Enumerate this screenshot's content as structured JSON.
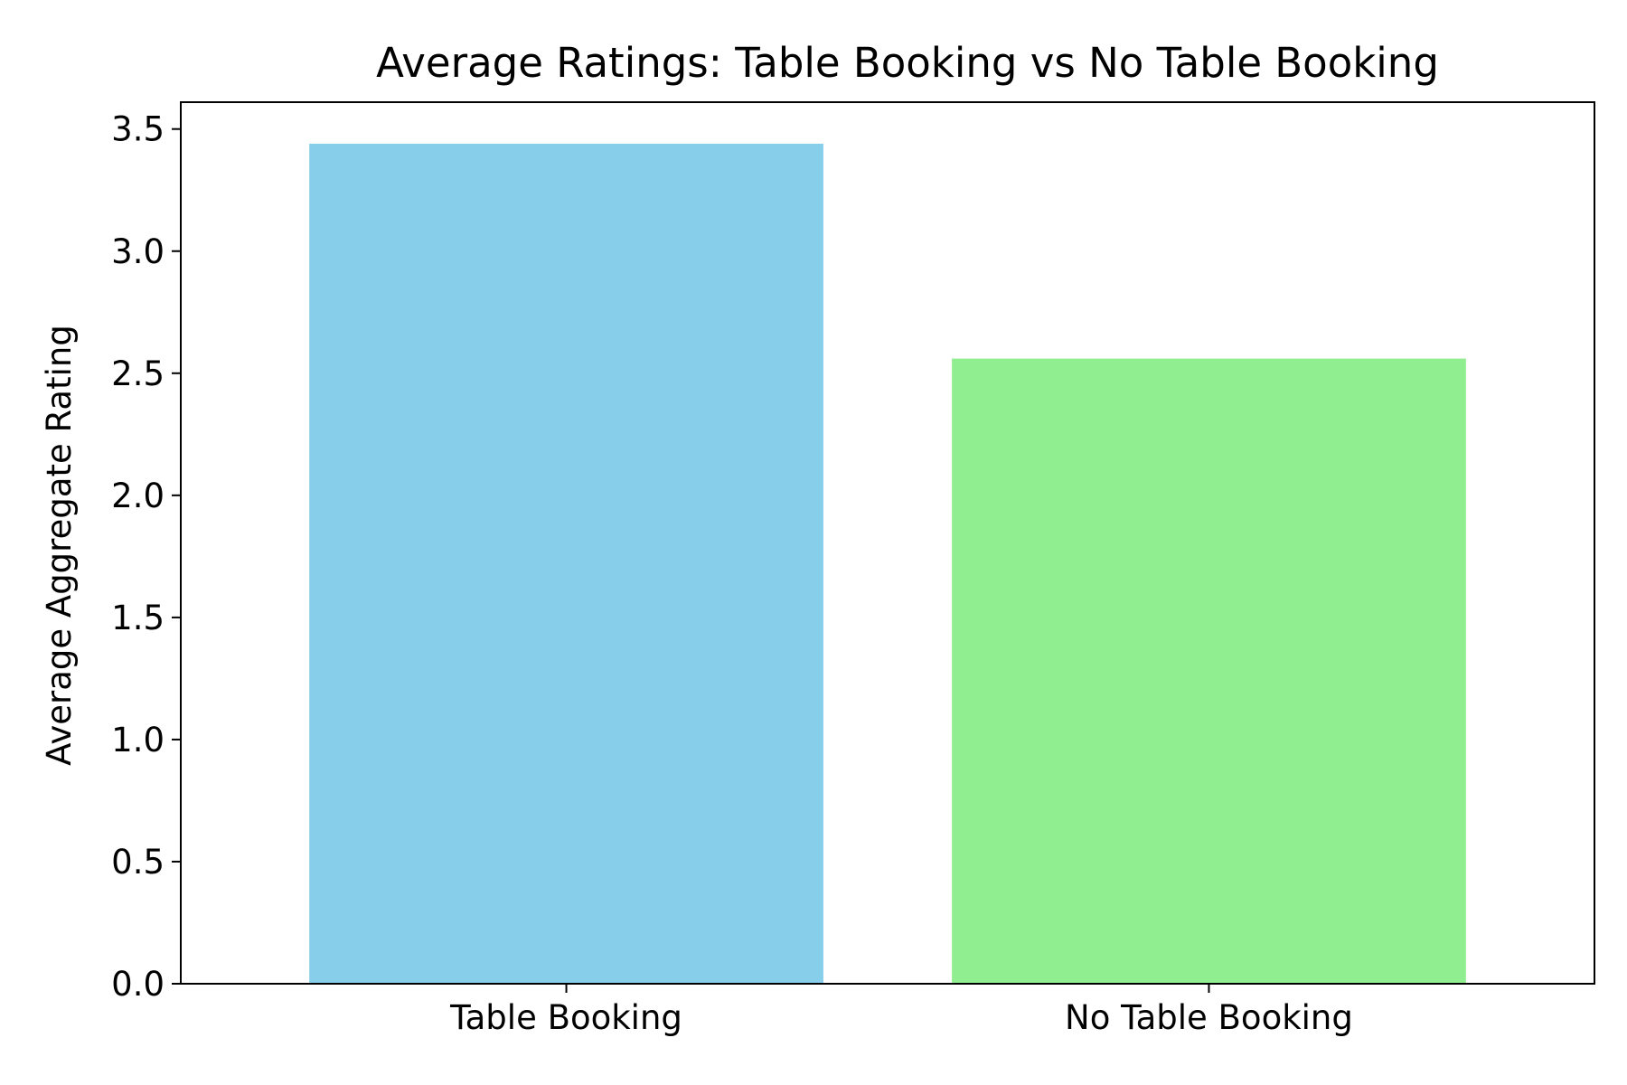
{
  "chart_data": {
    "type": "bar",
    "title": "Average Ratings: Table Booking vs No Table Booking",
    "xlabel": "",
    "ylabel": "Average Aggregate Rating",
    "categories": [
      "Table Booking",
      "No Table Booking"
    ],
    "values": [
      3.44,
      2.56
    ],
    "colors": [
      "#87ceeb",
      "#90ee90"
    ],
    "ylim": [
      0,
      3.61
    ],
    "yticks": [
      0.0,
      0.5,
      1.0,
      1.5,
      2.0,
      2.5,
      3.0,
      3.5
    ],
    "ytick_labels": [
      "0.0",
      "0.5",
      "1.0",
      "1.5",
      "2.0",
      "2.5",
      "3.0",
      "3.5"
    ],
    "grid": false,
    "legend": "none"
  }
}
